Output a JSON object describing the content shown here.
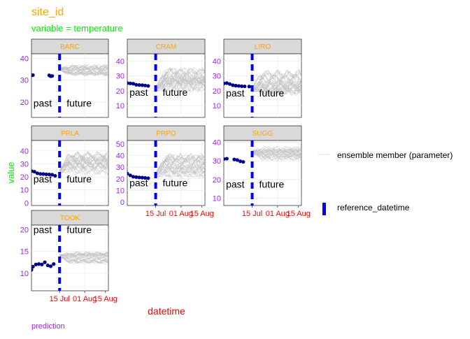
{
  "title": "site_id",
  "subtitle": "variable = temperature",
  "xlabel": "datetime",
  "ylabel": "value",
  "caption": "prediction",
  "legend": {
    "ensemble_label": "ensemble member (parameter)",
    "reference_label": "reference_datetime"
  },
  "colors": {
    "title": "#FFA500",
    "subtitle": "#00EE00",
    "strip_text": "#FFA500",
    "y_tick": "#A020F0",
    "x_tick": "#FF0000",
    "xlabel": "#FF0000",
    "ylabel": "#00EE00",
    "caption": "#A020F0",
    "observed": "#00008B",
    "ensemble": "#BEBEBE",
    "reference": "#0000FF",
    "strip_bg": "#D9D9D9",
    "grid": "#EBEBEB"
  },
  "chart_data": {
    "type": "line",
    "facet_var": "site_id",
    "x_range": [
      "2023-06-26",
      "2023-08-17"
    ],
    "reference_datetime": "2023-07-15",
    "x_ticks": [
      "15 Jul",
      "01 Aug",
      "15 Aug"
    ],
    "x_tick_dates": [
      "2023-07-15",
      "2023-08-01",
      "2023-08-15"
    ],
    "annotations": [
      "past",
      "future"
    ],
    "ensemble_members": 30,
    "sites": [
      {
        "name": "BARC",
        "ylim": [
          13,
          42
        ],
        "yticks": [
          20,
          30,
          40
        ],
        "annot_y": 19.5,
        "observed": [
          {
            "x": "2023-06-26",
            "y": 32.2
          },
          {
            "x": "2023-06-27",
            "y": 32.3
          },
          {
            "x": "2023-07-08",
            "y": 32.2
          },
          {
            "x": "2023-07-09",
            "y": 31.8
          },
          {
            "x": "2023-07-10",
            "y": 31.9
          }
        ],
        "ensemble": {
          "start": 35,
          "level": 34.5,
          "spread": 2.2
        }
      },
      {
        "name": "CRAM",
        "ylim": [
          2,
          45
        ],
        "yticks": [
          10,
          20,
          30,
          40
        ],
        "annot_y": 19,
        "observed": [
          {
            "x": "2023-06-26",
            "y": 25.2
          },
          {
            "x": "2023-06-28",
            "y": 25.0
          },
          {
            "x": "2023-06-30",
            "y": 24.8
          },
          {
            "x": "2023-07-02",
            "y": 24.1
          },
          {
            "x": "2023-07-04",
            "y": 23.9
          },
          {
            "x": "2023-07-06",
            "y": 23.8
          },
          {
            "x": "2023-07-08",
            "y": 23.6
          },
          {
            "x": "2023-07-10",
            "y": 23.3
          }
        ],
        "ensemble": {
          "start": 21,
          "level": 27,
          "spread": 7
        }
      },
      {
        "name": "LIRO",
        "ylim": [
          2,
          45
        ],
        "yticks": [
          10,
          20,
          30,
          40
        ],
        "annot_y": 18.5,
        "observed": [
          {
            "x": "2023-06-26",
            "y": 25.0
          },
          {
            "x": "2023-06-28",
            "y": 25.2
          },
          {
            "x": "2023-06-30",
            "y": 24.6
          },
          {
            "x": "2023-07-02",
            "y": 23.8
          },
          {
            "x": "2023-07-04",
            "y": 23.5
          },
          {
            "x": "2023-07-06",
            "y": 23.3
          },
          {
            "x": "2023-07-08",
            "y": 23.1
          },
          {
            "x": "2023-07-10",
            "y": 23.0
          },
          {
            "x": "2023-07-13",
            "y": 22.9
          }
        ],
        "ensemble": {
          "start": 21,
          "level": 26,
          "spread": 7
        }
      },
      {
        "name": "PRLA",
        "ylim": [
          -2,
          48
        ],
        "yticks": [
          0,
          10,
          20,
          30,
          40
        ],
        "annot_y": 18.5,
        "observed": [
          {
            "x": "2023-06-26",
            "y": 24.5
          },
          {
            "x": "2023-06-28",
            "y": 24.0
          },
          {
            "x": "2023-06-30",
            "y": 22.8
          },
          {
            "x": "2023-07-02",
            "y": 22.3
          },
          {
            "x": "2023-07-04",
            "y": 22.2
          },
          {
            "x": "2023-07-06",
            "y": 22.0
          },
          {
            "x": "2023-07-08",
            "y": 21.9
          },
          {
            "x": "2023-07-10",
            "y": 21.7
          },
          {
            "x": "2023-07-12",
            "y": 20.8
          }
        ],
        "ensemble": {
          "start": 24,
          "level": 31,
          "spread": 7
        }
      },
      {
        "name": "PRPO",
        "ylim": [
          -3,
          53
        ],
        "yticks": [
          0,
          10,
          20,
          30,
          40,
          50
        ],
        "annot_y": 16.5,
        "observed": [
          {
            "x": "2023-06-26",
            "y": 24.5
          },
          {
            "x": "2023-06-28",
            "y": 23.0
          },
          {
            "x": "2023-06-30",
            "y": 21.8
          },
          {
            "x": "2023-07-02",
            "y": 21.5
          },
          {
            "x": "2023-07-04",
            "y": 21.2
          },
          {
            "x": "2023-07-06",
            "y": 21.0
          },
          {
            "x": "2023-07-08",
            "y": 20.8
          },
          {
            "x": "2023-07-10",
            "y": 20.5
          }
        ],
        "ensemble": {
          "start": 23,
          "level": 31,
          "spread": 8
        }
      },
      {
        "name": "SUGG",
        "ylim": [
          6,
          41
        ],
        "yticks": [
          10,
          20,
          30,
          40
        ],
        "annot_y": 17.5,
        "observed": [
          {
            "x": "2023-06-26",
            "y": 31.0
          },
          {
            "x": "2023-06-28",
            "y": 31.2
          },
          {
            "x": "2023-07-03",
            "y": 30.8
          },
          {
            "x": "2023-07-05",
            "y": 30.5
          },
          {
            "x": "2023-07-07",
            "y": 29.8
          },
          {
            "x": "2023-07-09",
            "y": 29.5
          }
        ],
        "ensemble": {
          "start": 35,
          "level": 34,
          "spread": 3
        }
      },
      {
        "name": "TOOK",
        "ylim": [
          6,
          21
        ],
        "yticks": [
          10,
          15,
          20
        ],
        "annot_y": 20,
        "observed": [
          {
            "x": "2023-06-26",
            "y": 10.8
          },
          {
            "x": "2023-06-27",
            "y": 11.5
          },
          {
            "x": "2023-06-29",
            "y": 12.0
          },
          {
            "x": "2023-07-01",
            "y": 12.1
          },
          {
            "x": "2023-07-03",
            "y": 12.0
          },
          {
            "x": "2023-07-05",
            "y": 12.5
          },
          {
            "x": "2023-07-07",
            "y": 11.8
          },
          {
            "x": "2023-07-09",
            "y": 11.6
          },
          {
            "x": "2023-07-11",
            "y": 12.1
          }
        ],
        "ensemble": {
          "start": 14,
          "level": 13.5,
          "spread": 1.1
        }
      }
    ]
  }
}
